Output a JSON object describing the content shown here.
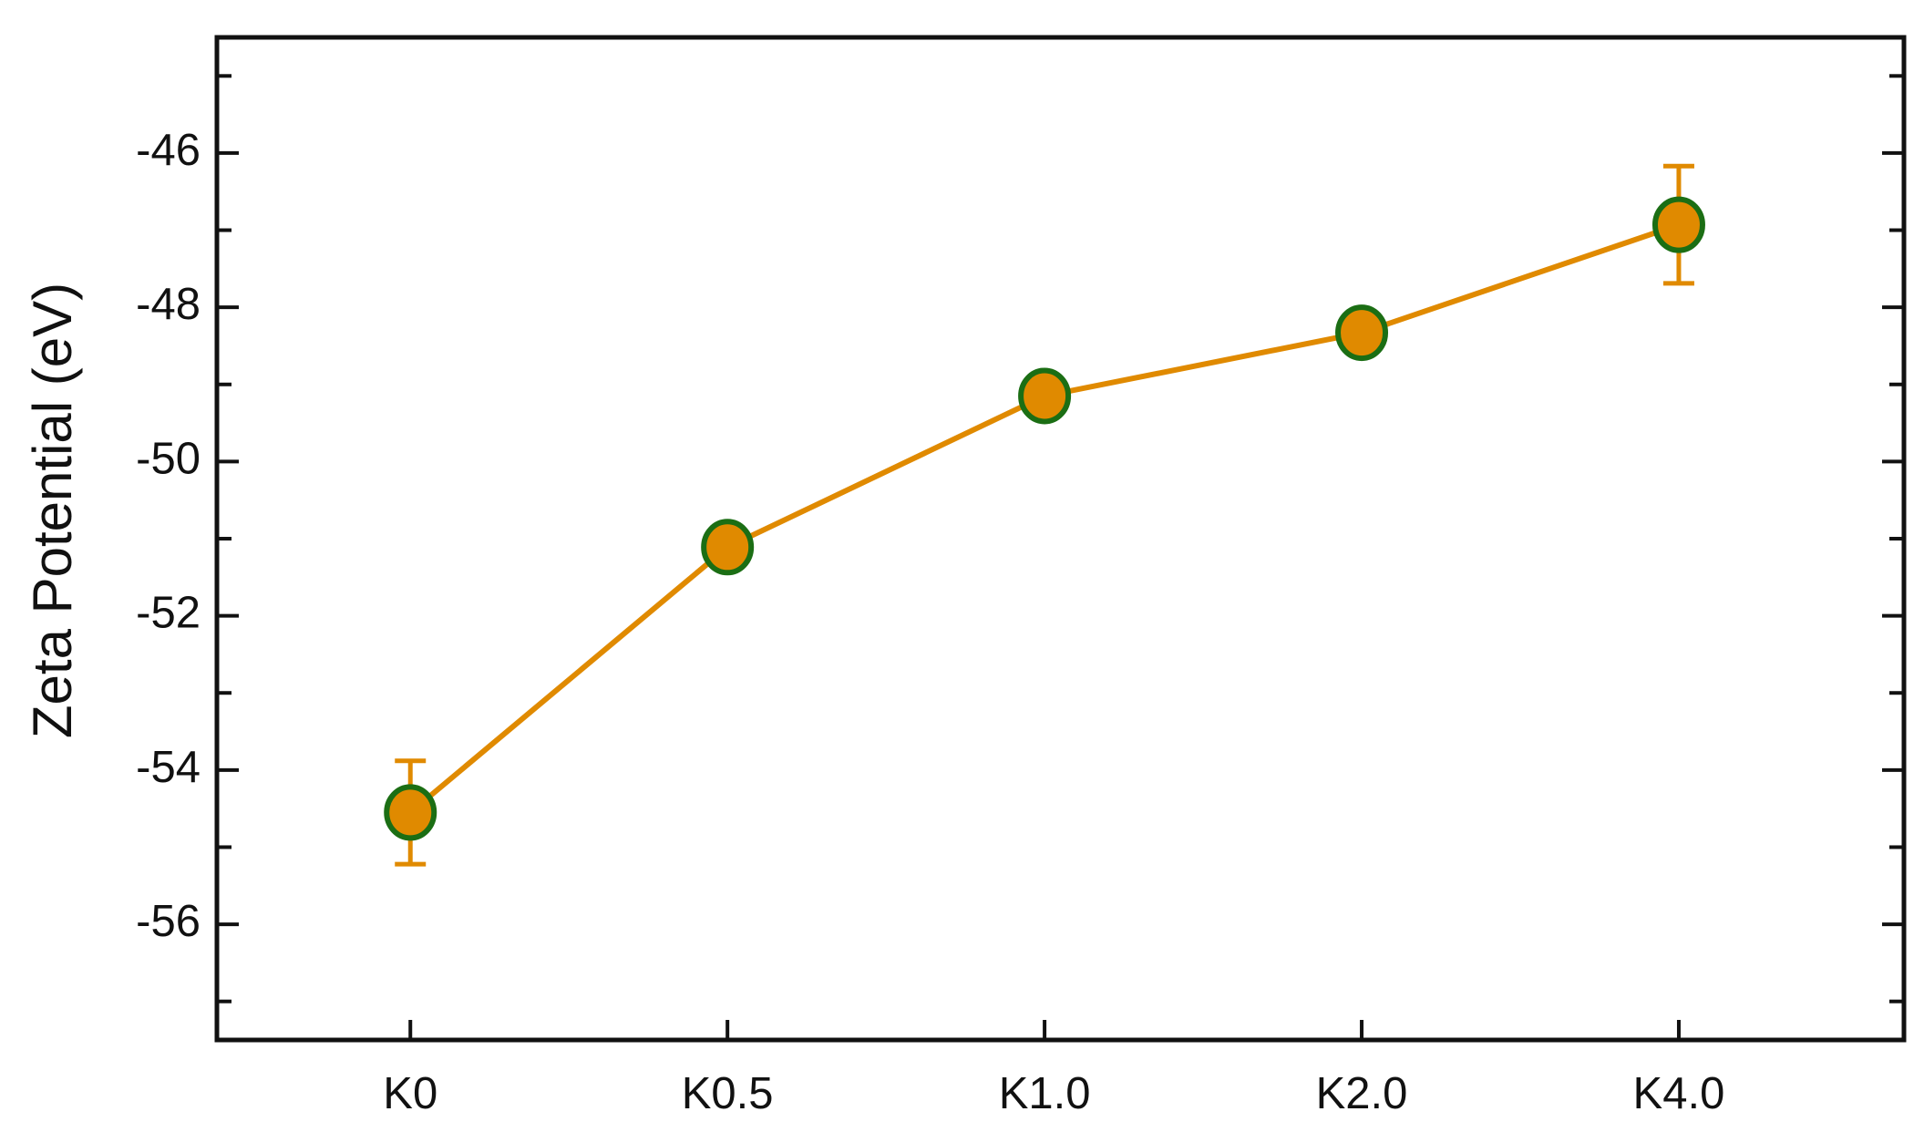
{
  "chart_data": {
    "type": "line",
    "y_label": "Zeta Potential (eV)",
    "categories": [
      "K0",
      "K0.5",
      "K1.0",
      "K2.0",
      "K4.0"
    ],
    "series": [
      {
        "values": [
          -54.55,
          -51.11,
          -49.15,
          -48.33,
          -46.93
        ],
        "errors": [
          0.67,
          null,
          null,
          null,
          0.76
        ],
        "color": "#e08a00",
        "marker_edge_color": "#1b6e14"
      }
    ],
    "ylim": [
      -57.5,
      -44.5
    ],
    "yticks": [
      -56,
      -54,
      -52,
      -50,
      -48,
      -46
    ],
    "y_minor_ticks": [
      -57,
      -55,
      -53,
      -51,
      -49,
      -47,
      -45
    ]
  }
}
